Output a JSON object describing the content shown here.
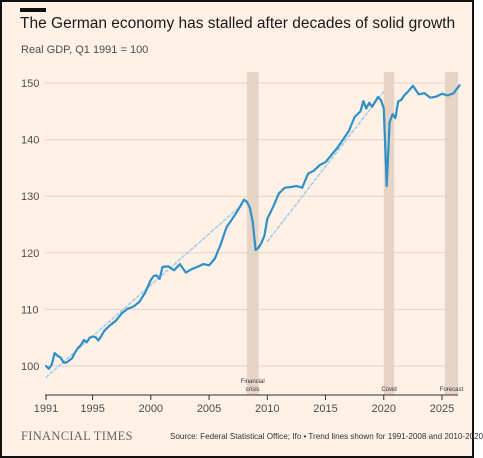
{
  "chart_data": {
    "type": "line",
    "title": "The German economy has stalled after decades of solid growth",
    "subtitle": "Real GDP, Q1 1991 = 100",
    "xlabel": "",
    "ylabel": "",
    "xlim": [
      1991,
      2026.5
    ],
    "ylim": [
      97,
      152
    ],
    "x_ticks": [
      "1991",
      "1995",
      "2000",
      "2005",
      "2010",
      "2015",
      "2020",
      "2025"
    ],
    "y_ticks": [
      "100",
      "110",
      "120",
      "130",
      "140",
      "150"
    ],
    "grid": true,
    "shaded_periods": [
      {
        "label_lines": [
          "Financial",
          "crisis"
        ],
        "start": 2008.25,
        "end": 2009.25
      },
      {
        "label_lines": [
          "Covid"
        ],
        "start": 2020.0,
        "end": 2020.9
      },
      {
        "label_lines": [
          "Forecast"
        ],
        "start": 2025.25,
        "end": 2026.5
      }
    ],
    "series": [
      {
        "color": "#2f8fc7",
        "x": [
          1991.0,
          1991.25,
          1991.5,
          1991.75,
          1992.0,
          1992.25,
          1992.5,
          1992.75,
          1993.0,
          1993.25,
          1993.5,
          1993.75,
          1994.0,
          1994.25,
          1994.5,
          1994.75,
          1995.0,
          1995.25,
          1995.5,
          1995.75,
          1996.0,
          1996.5,
          1997.0,
          1997.5,
          1998.0,
          1998.5,
          1999.0,
          1999.5,
          2000.0,
          2000.25,
          2000.5,
          2000.75,
          2001.0,
          2001.5,
          2002.0,
          2002.5,
          2003.0,
          2003.5,
          2004.0,
          2004.5,
          2005.0,
          2005.5,
          2006.0,
          2006.5,
          2007.0,
          2007.5,
          2008.0,
          2008.25,
          2008.5,
          2008.75,
          2009.0,
          2009.25,
          2009.5,
          2009.75,
          2010.0,
          2010.5,
          2011.0,
          2011.5,
          2012.0,
          2012.5,
          2013.0,
          2013.5,
          2014.0,
          2014.5,
          2015.0,
          2015.5,
          2016.0,
          2016.5,
          2017.0,
          2017.5,
          2018.0,
          2018.25,
          2018.5,
          2018.75,
          2019.0,
          2019.5,
          2019.75,
          2020.0,
          2020.25,
          2020.5,
          2020.75,
          2021.0,
          2021.25,
          2021.5,
          2021.75,
          2022.0,
          2022.5,
          2023.0,
          2023.5,
          2024.0,
          2024.5,
          2025.0,
          2025.5,
          2026.0,
          2026.5
        ],
        "values": [
          100.0,
          99.5,
          100.3,
          102.3,
          101.8,
          101.5,
          100.6,
          100.6,
          101.0,
          101.4,
          102.4,
          103.2,
          103.7,
          104.6,
          104.2,
          105.0,
          105.2,
          105.1,
          104.5,
          105.3,
          106.2,
          107.2,
          108.0,
          109.3,
          110.1,
          110.5,
          111.3,
          112.9,
          115.2,
          115.9,
          116.0,
          115.4,
          117.5,
          117.6,
          116.9,
          118.0,
          116.5,
          117.1,
          117.5,
          118.0,
          117.8,
          119.0,
          121.5,
          124.5,
          126.0,
          127.6,
          129.4,
          129.0,
          128.0,
          125.5,
          120.5,
          120.9,
          121.8,
          123.0,
          126.0,
          128.1,
          130.5,
          131.5,
          131.6,
          131.8,
          131.5,
          134.0,
          134.5,
          135.5,
          136.0,
          137.3,
          138.5,
          140.0,
          141.5,
          144.0,
          145.0,
          146.8,
          145.5,
          146.5,
          145.8,
          147.5,
          147.0,
          145.5,
          131.8,
          143.0,
          144.5,
          143.8,
          146.8,
          147.0,
          147.8,
          148.3,
          149.5,
          148.0,
          148.2,
          147.4,
          147.6,
          148.1,
          147.8,
          148.2,
          149.6
        ]
      },
      {
        "color": "#a9cde8",
        "dashed": true,
        "x": [
          1991.0,
          2008.0
        ],
        "values": [
          98.0,
          128.8
        ]
      },
      {
        "color": "#a9cde8",
        "dashed": true,
        "x": [
          2010.0,
          2020.0
        ],
        "values": [
          122.0,
          148.5
        ]
      }
    ]
  },
  "footer": {
    "brand": "FINANCIAL TIMES",
    "source": "Source: Federal Statistical Office; Ifo • Trend lines shown for 1991-2008 and 2010-2020"
  }
}
